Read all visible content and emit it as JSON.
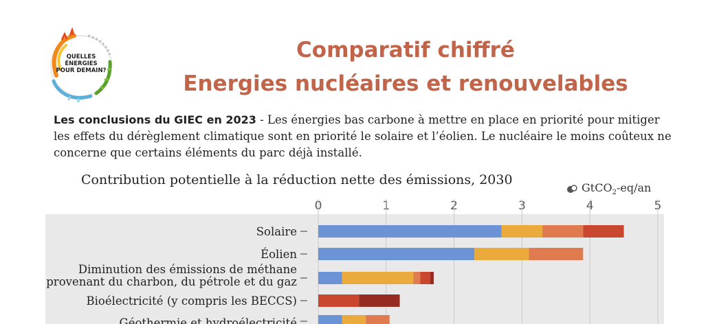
{
  "logo": {
    "text_lines": [
      "QUELLES",
      "ÉNERGIES",
      "POUR DEMAIN?"
    ]
  },
  "title_line1": "Comparatif chiffré",
  "title_line2": "Energies nucléaires et renouvelables",
  "intro": {
    "heading": "Les conclusions du GIEC en 2023",
    "text": " - Les énergies bas carbone à mettre en place en priorité pour mitiger les effets du dérèglement climatique sont en priorité le solaire et l’éolien. Le nucléaire le moins coûteux ne concerne que certains éléments du parc déjà installé."
  },
  "chart_data": {
    "type": "bar",
    "orientation": "horizontal",
    "stacked": true,
    "title": "Contribution potentielle à la réduction nette des émissions, 2030",
    "unit_prefix": "GtCO",
    "unit_sub": "2",
    "unit_suffix": "-eq/an",
    "xlim": [
      0,
      5
    ],
    "xticks": [
      0,
      1,
      2,
      3,
      4,
      5
    ],
    "colors": [
      "#6b93d6",
      "#eaaa3c",
      "#e07b4f",
      "#c9472e",
      "#962b22"
    ],
    "rows": [
      {
        "label_lines": [
          "Solaire"
        ],
        "segments": [
          2.7,
          0.6,
          0.6,
          0.6
        ]
      },
      {
        "label_lines": [
          "Éolien"
        ],
        "segments": [
          2.3,
          0.8,
          0.8
        ]
      },
      {
        "label_lines": [
          "Diminution des émissions de méthane",
          "provenant du charbon, du pétrole et du gaz"
        ],
        "segments": [
          0.35,
          1.05,
          0.1,
          0.15,
          0.05
        ]
      },
      {
        "label_lines": [
          "Bioélectricité (y compris les BECCS)"
        ],
        "segments": [
          0,
          0,
          0,
          0.6,
          0.6
        ]
      },
      {
        "label_lines": [
          "Géothermie et hydroélectricité"
        ],
        "segments": [
          0.35,
          0.35,
          0.35
        ]
      }
    ]
  }
}
